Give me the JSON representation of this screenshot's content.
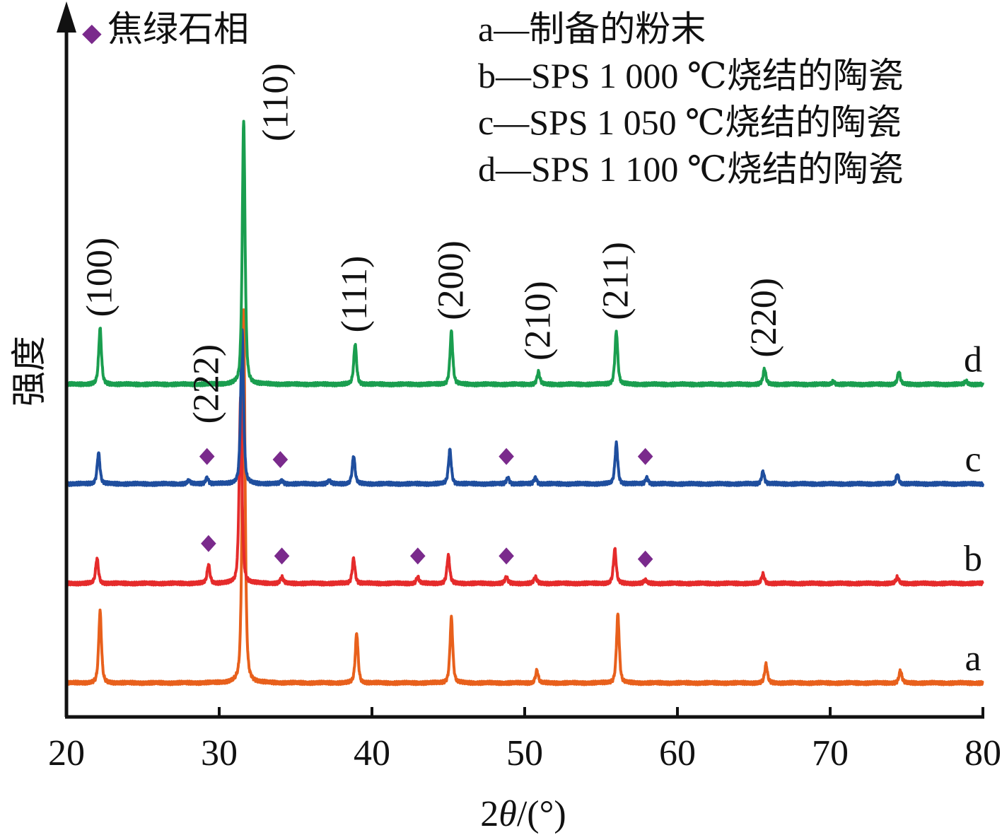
{
  "chart_data": {
    "type": "line",
    "xlabel_prefix": "2",
    "xlabel_symbol": "θ",
    "xlabel_suffix": "/(°)",
    "ylabel": "强度",
    "xlim": [
      20,
      80
    ],
    "xticks": [
      20,
      30,
      40,
      50,
      60,
      70,
      80
    ],
    "yticks": [],
    "grid": false,
    "legend_position": "top-right",
    "marker_legend": {
      "symbol": "◆",
      "label": "焦绿石相",
      "color": "#7a2a8c"
    },
    "legend": [
      "a—制备的粉末",
      "b—SPS 1 000 ℃烧结的陶瓷",
      "c—SPS 1 050 ℃烧结的陶瓷",
      "d—SPS 1 100 ℃烧结的陶瓷"
    ],
    "series": [
      {
        "name": "a",
        "color": "#e8601c",
        "baseline": 0.0,
        "peaks": [
          {
            "x": 22.2,
            "h": 0.23
          },
          {
            "x": 31.6,
            "h": 1.2
          },
          {
            "x": 39.0,
            "h": 0.16
          },
          {
            "x": 45.2,
            "h": 0.21
          },
          {
            "x": 50.8,
            "h": 0.04
          },
          {
            "x": 56.1,
            "h": 0.22
          },
          {
            "x": 65.8,
            "h": 0.06
          },
          {
            "x": 74.6,
            "h": 0.04
          }
        ]
      },
      {
        "name": "b",
        "color": "#e52b2b",
        "baseline": 0.32,
        "peaks": [
          {
            "x": 22.0,
            "h": 0.08
          },
          {
            "x": 29.3,
            "h": 0.06
          },
          {
            "x": 31.4,
            "h": 0.6
          },
          {
            "x": 34.1,
            "h": 0.02
          },
          {
            "x": 38.8,
            "h": 0.08
          },
          {
            "x": 43.0,
            "h": 0.02
          },
          {
            "x": 45.0,
            "h": 0.09
          },
          {
            "x": 48.8,
            "h": 0.02
          },
          {
            "x": 50.7,
            "h": 0.02
          },
          {
            "x": 55.9,
            "h": 0.11
          },
          {
            "x": 57.9,
            "h": 0.01
          },
          {
            "x": 65.6,
            "h": 0.03
          },
          {
            "x": 74.4,
            "h": 0.02
          }
        ],
        "phase_markers": [
          29.3,
          34.1,
          43.0,
          48.8,
          57.9
        ]
      },
      {
        "name": "c",
        "color": "#1f4e9e",
        "baseline": 0.64,
        "peaks": [
          {
            "x": 22.1,
            "h": 0.1
          },
          {
            "x": 28.0,
            "h": 0.01
          },
          {
            "x": 29.2,
            "h": 0.02
          },
          {
            "x": 31.5,
            "h": 0.5
          },
          {
            "x": 34.1,
            "h": 0.01
          },
          {
            "x": 37.2,
            "h": 0.01
          },
          {
            "x": 38.8,
            "h": 0.09
          },
          {
            "x": 45.1,
            "h": 0.11
          },
          {
            "x": 48.9,
            "h": 0.02
          },
          {
            "x": 50.7,
            "h": 0.02
          },
          {
            "x": 56.0,
            "h": 0.13
          },
          {
            "x": 58.0,
            "h": 0.02
          },
          {
            "x": 65.6,
            "h": 0.04
          },
          {
            "x": 74.4,
            "h": 0.03
          }
        ],
        "phase_markers": [
          29.2,
          34.0,
          48.8,
          57.9
        ]
      },
      {
        "name": "d",
        "color": "#1a9e4f",
        "baseline": 0.96,
        "peaks": [
          {
            "x": 22.2,
            "h": 0.18
          },
          {
            "x": 31.6,
            "h": 0.85
          },
          {
            "x": 38.9,
            "h": 0.13
          },
          {
            "x": 45.2,
            "h": 0.17
          },
          {
            "x": 50.9,
            "h": 0.04
          },
          {
            "x": 56.0,
            "h": 0.17
          },
          {
            "x": 65.7,
            "h": 0.05
          },
          {
            "x": 70.2,
            "h": 0.01
          },
          {
            "x": 74.5,
            "h": 0.04
          },
          {
            "x": 78.9,
            "h": 0.01
          }
        ]
      }
    ],
    "annotations": [
      {
        "text": "(100)",
        "x": 22.2
      },
      {
        "text": "(110)",
        "x": 31.6
      },
      {
        "text": "(111)",
        "x": 38.9
      },
      {
        "text": "(200)",
        "x": 45.2
      },
      {
        "text": "(210)",
        "x": 50.9
      },
      {
        "text": "(211)",
        "x": 56.0
      },
      {
        "text": "(220)",
        "x": 65.7
      },
      {
        "text": "(222)",
        "x": 29.2
      }
    ]
  }
}
